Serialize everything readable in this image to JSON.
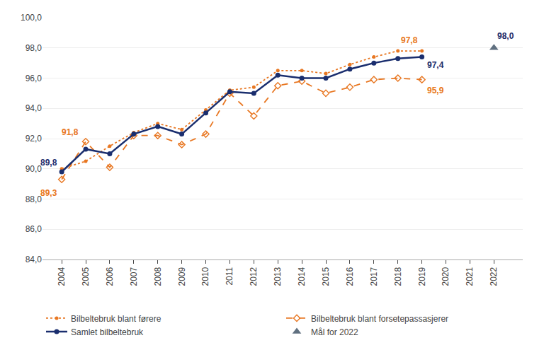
{
  "chart_data": {
    "type": "line",
    "series": [
      {
        "name": "Bilbeltebruk blant førere",
        "type": "line",
        "color": "#e87722",
        "marker": "dot",
        "line_style": "dot",
        "x": [
          2004,
          2005,
          2006,
          2007,
          2008,
          2009,
          2010,
          2011,
          2012,
          2013,
          2014,
          2015,
          2016,
          2017,
          2018,
          2019
        ],
        "values": [
          90.0,
          90.5,
          91.5,
          92.4,
          93.0,
          92.6,
          93.9,
          95.2,
          95.4,
          96.5,
          96.5,
          96.3,
          96.9,
          97.4,
          97.8,
          97.8
        ]
      },
      {
        "name": "Bilbeltebruk blant forsetepassasjerer",
        "type": "line",
        "color": "#e87722",
        "marker": "diamond-open",
        "line_style": "dash",
        "x": [
          2004,
          2005,
          2006,
          2007,
          2008,
          2009,
          2010,
          2011,
          2012,
          2013,
          2014,
          2015,
          2016,
          2017,
          2018,
          2019
        ],
        "values": [
          89.3,
          91.8,
          90.1,
          92.2,
          92.2,
          91.6,
          92.3,
          95.0,
          93.5,
          95.5,
          95.8,
          95.0,
          95.4,
          95.9,
          96.0,
          95.9
        ]
      },
      {
        "name": "Samlet bilbeltebruk",
        "type": "line",
        "color": "#1a2e6e",
        "marker": "circle",
        "line_style": "solid",
        "x": [
          2004,
          2005,
          2006,
          2007,
          2008,
          2009,
          2010,
          2011,
          2012,
          2013,
          2014,
          2015,
          2016,
          2017,
          2018,
          2019
        ],
        "values": [
          89.8,
          91.3,
          91.0,
          92.3,
          92.8,
          92.3,
          93.7,
          95.1,
          95.0,
          96.2,
          96.0,
          96.0,
          96.6,
          97.0,
          97.3,
          97.4
        ]
      },
      {
        "name": "Mål for 2022",
        "type": "scatter",
        "color": "#607080",
        "marker": "triangle-up",
        "x": [
          2022
        ],
        "values": [
          98.0
        ]
      }
    ],
    "annotations": [
      {
        "text": "89,8",
        "x": 2004,
        "y": 89.8,
        "color": "#1a2e6e"
      },
      {
        "text": "89,3",
        "x": 2004,
        "y": 89.3,
        "color": "#e87722"
      },
      {
        "text": "91,8",
        "x": 2005,
        "y": 91.8,
        "color": "#e87722"
      },
      {
        "text": "97,8",
        "x": 2018,
        "y": 97.8,
        "color": "#e87722"
      },
      {
        "text": "95,9",
        "x": 2019,
        "y": 95.9,
        "color": "#e87722"
      },
      {
        "text": "97,4",
        "x": 2019,
        "y": 97.4,
        "color": "#1a2e6e"
      },
      {
        "text": "98,0",
        "x": 2022,
        "y": 98.0,
        "color": "#1a2e6e"
      }
    ],
    "xlim": [
      2003.2,
      2023.2
    ],
    "xticks": [
      2004,
      2005,
      2006,
      2007,
      2008,
      2009,
      2010,
      2011,
      2012,
      2013,
      2014,
      2015,
      2016,
      2017,
      2018,
      2019,
      2020,
      2021,
      2022
    ],
    "ylim": [
      84.0,
      100.0
    ],
    "yticks": [
      {
        "value": 84.0,
        "label": "84,0"
      },
      {
        "value": 86.0,
        "label": "86,0"
      },
      {
        "value": 88.0,
        "label": "88,0"
      },
      {
        "value": 90.0,
        "label": "90,0"
      },
      {
        "value": 92.0,
        "label": "92,0"
      },
      {
        "value": 94.0,
        "label": "94,0"
      },
      {
        "value": 96.0,
        "label": "96,0"
      },
      {
        "value": 98.0,
        "label": "98,0"
      },
      {
        "value": 100.0,
        "label": "100,0"
      }
    ],
    "grid": true,
    "legend": "bottom"
  }
}
